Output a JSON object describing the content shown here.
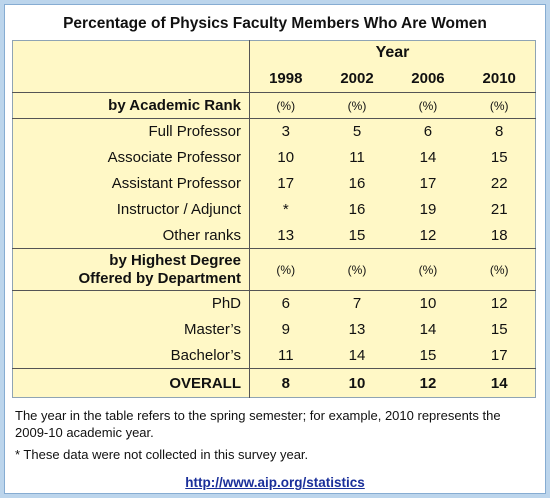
{
  "title": "Percentage of Physics Faculty Members Who Are Women",
  "table": {
    "year_header": "Year",
    "years": [
      "1998",
      "2002",
      "2006",
      "2010"
    ],
    "sections": [
      {
        "heading": [
          "by Academic Rank"
        ],
        "units": [
          "(%)",
          "(%)",
          "(%)",
          "(%)"
        ],
        "rows": [
          {
            "label": "Full Professor",
            "values": [
              3,
              5,
              6,
              8
            ]
          },
          {
            "label": "Associate Professor",
            "values": [
              10,
              11,
              14,
              15
            ]
          },
          {
            "label": "Assistant Professor",
            "values": [
              17,
              16,
              17,
              22
            ]
          },
          {
            "label": "Instructor / Adjunct",
            "values": [
              "*",
              16,
              19,
              21
            ]
          },
          {
            "label": "Other ranks",
            "values": [
              13,
              15,
              12,
              18
            ]
          }
        ]
      },
      {
        "heading": [
          "by Highest Degree",
          "Offered by Department"
        ],
        "units": [
          "(%)",
          "(%)",
          "(%)",
          "(%)"
        ],
        "rows": [
          {
            "label": "PhD",
            "values": [
              6,
              7,
              10,
              12
            ]
          },
          {
            "label": "Master’s",
            "values": [
              9,
              13,
              14,
              15
            ]
          },
          {
            "label": "Bachelor’s",
            "values": [
              11,
              14,
              15,
              17
            ]
          }
        ]
      }
    ],
    "overall": {
      "label": "OVERALL",
      "values": [
        8,
        10,
        12,
        14
      ]
    }
  },
  "notes": [
    "The year in the table refers to the spring semester; for example, 2010 represents the 2009-10 academic year.",
    "* These data were not collected in this survey year."
  ],
  "link": "http://www.aip.org/statistics"
}
